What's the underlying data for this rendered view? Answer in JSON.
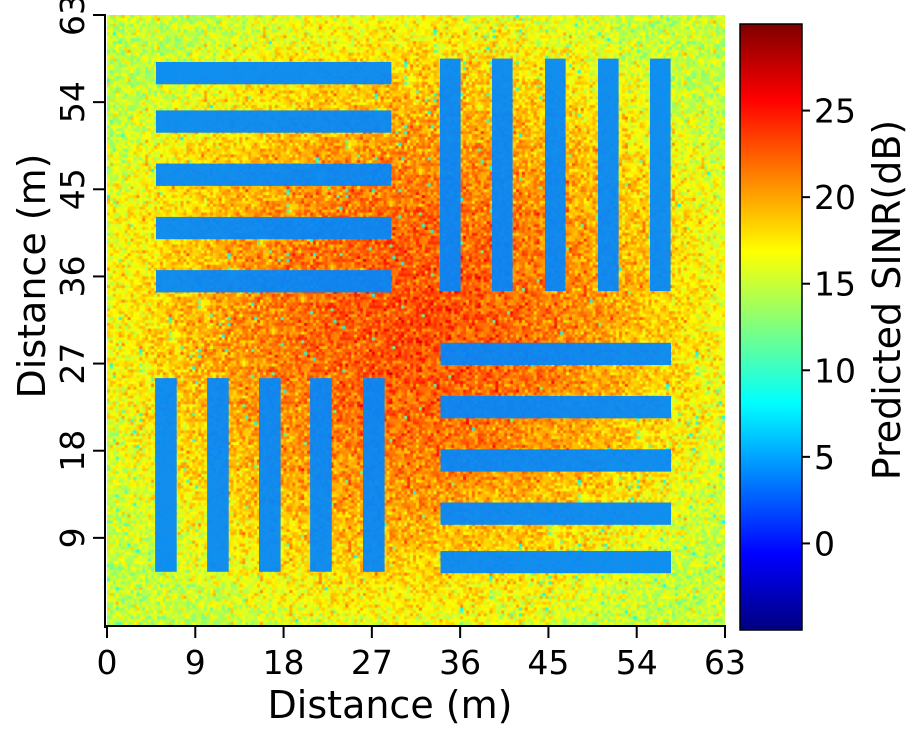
{
  "chart_data": {
    "type": "heatmap",
    "title": "",
    "xlabel": "Distance (m)",
    "ylabel": "Distance (m)",
    "xlim": [
      0,
      63
    ],
    "ylim": [
      0,
      63
    ],
    "xticks": [
      0,
      9,
      18,
      27,
      36,
      45,
      54,
      63
    ],
    "yticks": [
      9,
      18,
      27,
      36,
      45,
      54,
      63
    ],
    "colorbar": {
      "label": "Predicted SINR(dB)",
      "range": [
        -5,
        30
      ],
      "ticks": [
        0,
        5,
        10,
        15,
        20,
        25
      ],
      "colormap": "jet"
    },
    "background_sinr_db": {
      "center": 23,
      "edges": 15
    },
    "stripe_sinr_db": 4,
    "stripe_blocks": [
      {
        "name": "top-left-horizontal",
        "orientation": "horizontal",
        "x_range": [
          5,
          29
        ],
        "centers": [
          57,
          52,
          46.5,
          41,
          35.5
        ],
        "width": 2.3
      },
      {
        "name": "top-right-vertical",
        "orientation": "vertical",
        "y_range": [
          34.5,
          58.5
        ],
        "centers": [
          35,
          40.3,
          45.7,
          51.1,
          56.4
        ],
        "width": 2.1
      },
      {
        "name": "bottom-left-vertical",
        "orientation": "vertical",
        "y_range": [
          5.5,
          25.5
        ],
        "centers": [
          6,
          11.3,
          16.6,
          21.8,
          27.2
        ],
        "width": 2.2
      },
      {
        "name": "bottom-right-horizontal",
        "orientation": "horizontal",
        "x_range": [
          34,
          57.5
        ],
        "centers": [
          28,
          22.5,
          17,
          11.5,
          6.5
        ],
        "width": 2.3
      }
    ]
  }
}
